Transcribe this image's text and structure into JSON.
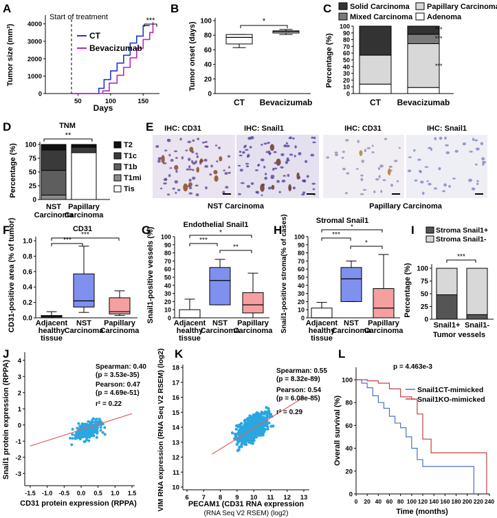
{
  "panels": {
    "A": {
      "letter": "A",
      "title": "Start of treatment",
      "xlabel": "Days",
      "ylabel": "Tumor size (mm³)",
      "yticks": [
        "0",
        "1000",
        "2000",
        "3000",
        "4000"
      ],
      "xticks": [
        "50",
        "100",
        "150"
      ],
      "sig": "***",
      "legend": [
        "CT",
        "Bevacizumab"
      ]
    },
    "B": {
      "letter": "B",
      "ylabel": "Tumor onset (days)",
      "yticks": [
        "0",
        "20",
        "40",
        "60",
        "80",
        "100"
      ],
      "cats": [
        "CT",
        "Bevacizumab"
      ],
      "sig": "*"
    },
    "C": {
      "letter": "C",
      "ylabel": "Percentage (%)",
      "yticks": [
        "0",
        "10",
        "20",
        "30",
        "40",
        "50",
        "60",
        "70",
        "80",
        "90",
        "100"
      ],
      "cats": [
        "CT",
        "Bevacizumab"
      ],
      "legend": [
        "Solid Carcinoma",
        "Papillary Carcinoma",
        "Mixed Carcinoma",
        "Adenoma"
      ],
      "sig": [
        "***",
        "***",
        "***"
      ]
    },
    "D": {
      "letter": "D",
      "title": "TNM",
      "ylabel": "Percentage (%)",
      "yticks": [
        "0",
        "25",
        "50",
        "75",
        "100"
      ],
      "cats": [
        "NST Carcinoma",
        "Papillary Carcinoma"
      ],
      "legend": [
        "T2",
        "T1c",
        "T1b",
        "T1mi",
        "Tis"
      ],
      "sig": "**"
    },
    "E": {
      "letter": "E",
      "labels": [
        "IHC: CD31",
        "IHC: Snail1",
        "IHC: CD31",
        "IHC: Snail1"
      ],
      "captions": [
        "NST Carcinoma",
        "Papillary Carcinoma"
      ]
    },
    "F": {
      "letter": "F",
      "title": "CD31",
      "ylabel": "CD31-positive area (% of tumor)",
      "yticks": [
        "0.0",
        "0.2",
        "0.4",
        "0.6",
        "0.8",
        "1.0"
      ],
      "cats": [
        "Adjacent healthy tissue",
        "NST Carcinoma",
        "Papillary Carcinoma"
      ],
      "sig": [
        "***",
        "***"
      ]
    },
    "G": {
      "letter": "G",
      "title": "Endothelial Snail1",
      "ylabel": "Snail1-positive vessels (%)",
      "yticks": [
        "0",
        "10",
        "20",
        "30",
        "40",
        "50",
        "60",
        "70",
        "80",
        "90",
        "100"
      ],
      "cats": [
        "Adjacent healthy tissue",
        "NST Carcinoma",
        "Papillary Carcinoma"
      ],
      "sig": [
        "*",
        "***",
        "**"
      ]
    },
    "H": {
      "letter": "H",
      "title": "Stromal Snail1",
      "ylabel": "Snail1-positive stroma(% of cases)",
      "yticks": [
        "0",
        "10",
        "20",
        "30",
        "40",
        "50",
        "60",
        "70",
        "80",
        "90",
        "100"
      ],
      "cats": [
        "Adjacent healthy tissue",
        "NST Carcinoma",
        "Papillary Carcinoma"
      ],
      "sig": [
        "*",
        "***",
        "*"
      ]
    },
    "I": {
      "letter": "I",
      "ylabel": "Percentage (%)",
      "yticks": [
        "0",
        "25",
        "50",
        "75",
        "100"
      ],
      "cats": [
        "Snail1+",
        "Snail1-"
      ],
      "xlabel": "Tumor vessels",
      "legend": [
        "Stroma Snail1+",
        "Stroma Snail1-"
      ],
      "sig": "***"
    },
    "J": {
      "letter": "J",
      "xlabel": "CD31 protein expression (RPPA)",
      "ylabel": "Snail1 protein expression (RPPA)",
      "xticks": [
        "-1.5",
        "-1.0",
        "-0.5",
        "0.0",
        "0.5",
        "1.0",
        "1.5"
      ],
      "yticks": [
        "-3",
        "-2",
        "-1",
        "0",
        "1",
        "2",
        "3",
        "4"
      ],
      "stats": [
        "Spearman: 0.40",
        "(p = 3.53e-35)",
        "Pearson: 0.47",
        "(p = 4.69e-51)",
        "r² = 0.22"
      ]
    },
    "K": {
      "letter": "K",
      "xlabel": "PECAM1 (CD31 RNA expression",
      "xlabel2": "(RNA Seq V2 RSEM) (log2)",
      "ylabel": "VIM RNA expression (RNA Seq V2 RSEM) (log2)",
      "xticks": [
        "6",
        "7",
        "8",
        "9",
        "10",
        "11",
        "12",
        "13"
      ],
      "yticks": [
        "10",
        "11",
        "12",
        "13",
        "14",
        "15",
        "16",
        "17",
        "18"
      ],
      "stats": [
        "Spearman: 0.55",
        "(p = 8.32e-89)",
        "Pearson: 0.54",
        "(p = 6.08e-85)",
        "r² = 0.29"
      ]
    },
    "L": {
      "letter": "L",
      "pvalue": "p = 4.463e-3",
      "xlabel": "Time (months)",
      "ylabel": "Overall survival (%)",
      "xticks": [
        "0",
        "20",
        "40",
        "60",
        "80",
        "100",
        "120",
        "140",
        "160",
        "180",
        "200",
        "220",
        "240"
      ],
      "yticks": [
        "0",
        "20",
        "40",
        "60",
        "80",
        "100"
      ],
      "legend": [
        "Snail1CT-mimicked",
        "Snail1KO-mimicked"
      ]
    }
  },
  "colors": {
    "ct": "#2233cc",
    "bev": "#c020c0",
    "blue_box": "#8090ee",
    "red_box": "#f4a0a0",
    "scatter": "#2aa7e0",
    "fit": "#e06060",
    "surv_blue": "#4a70c8",
    "surv_red": "#c04040"
  },
  "chart_data": [
    {
      "panel": "A",
      "type": "line",
      "series": [
        {
          "name": "CT",
          "x": [
            40,
            78,
            82,
            90,
            100,
            110,
            120,
            130,
            140,
            150,
            160
          ],
          "y": [
            0,
            0,
            300,
            800,
            1300,
            1750,
            2200,
            2900,
            3300,
            3900,
            3900
          ]
        },
        {
          "name": "Bevacizumab",
          "x": [
            40,
            84,
            88,
            98,
            110,
            120,
            130,
            140,
            150,
            160,
            165
          ],
          "y": [
            0,
            0,
            150,
            600,
            1050,
            1500,
            2050,
            2600,
            3100,
            3500,
            4100
          ]
        }
      ],
      "xlim": [
        0,
        175
      ],
      "ylim": [
        0,
        4500
      ]
    },
    {
      "panel": "B",
      "type": "box",
      "categories": [
        "CT",
        "Bevacizumab"
      ],
      "boxes": [
        {
          "min": 63,
          "q1": 68,
          "median": 77,
          "q3": 81,
          "max": 81
        },
        {
          "min": 81,
          "q1": 83,
          "median": 85,
          "q3": 86,
          "max": 88
        }
      ],
      "ylim": [
        0,
        100
      ]
    },
    {
      "panel": "C",
      "type": "bar",
      "stacked": true,
      "categories": [
        "CT",
        "Bevacizumab"
      ],
      "series": [
        {
          "name": "Adenoma",
          "values": [
            14,
            9
          ]
        },
        {
          "name": "Papillary Carcinoma",
          "values": [
            43,
            65
          ]
        },
        {
          "name": "Mixed Carcinoma",
          "values": [
            0,
            14
          ]
        },
        {
          "name": "Solid Carcinoma",
          "values": [
            43,
            12
          ]
        }
      ],
      "ylim": [
        0,
        100
      ]
    },
    {
      "panel": "D",
      "type": "bar",
      "stacked": true,
      "categories": [
        "NST Carcinoma",
        "Papillary Carcinoma"
      ],
      "series": [
        {
          "name": "Tis",
          "values": [
            0,
            85
          ]
        },
        {
          "name": "T1mi",
          "values": [
            8,
            0
          ]
        },
        {
          "name": "T1b",
          "values": [
            45,
            0
          ]
        },
        {
          "name": "T1c",
          "values": [
            37,
            10
          ]
        },
        {
          "name": "T2",
          "values": [
            10,
            5
          ]
        }
      ],
      "ylim": [
        0,
        100
      ]
    },
    {
      "panel": "F",
      "type": "box",
      "categories": [
        "Adjacent healthy tissue",
        "NST Carcinoma",
        "Papillary Carcinoma"
      ],
      "boxes": [
        {
          "min": 0.0,
          "q1": 0.01,
          "median": 0.02,
          "q3": 0.03,
          "max": 0.08
        },
        {
          "min": 0.07,
          "q1": 0.14,
          "median": 0.22,
          "q3": 0.57,
          "max": 0.93
        },
        {
          "min": 0.03,
          "q1": 0.05,
          "median": 0.08,
          "q3": 0.26,
          "max": 0.35
        }
      ],
      "ylim": [
        0,
        1.0
      ]
    },
    {
      "panel": "G",
      "type": "box",
      "categories": [
        "Adjacent healthy tissue",
        "NST Carcinoma",
        "Papillary Carcinoma"
      ],
      "boxes": [
        {
          "min": 0,
          "q1": 0,
          "median": 0,
          "q3": 10,
          "max": 23
        },
        {
          "min": 16,
          "q1": 16,
          "median": 46,
          "q3": 62,
          "max": 72
        },
        {
          "min": 0,
          "q1": 6,
          "median": 16,
          "q3": 31,
          "max": 55
        }
      ],
      "ylim": [
        0,
        100
      ]
    },
    {
      "panel": "H",
      "type": "box",
      "categories": [
        "Adjacent healthy tissue",
        "NST Carcinoma",
        "Papillary Carcinoma"
      ],
      "boxes": [
        {
          "min": 0,
          "q1": 0,
          "median": 0,
          "q3": 12,
          "max": 19
        },
        {
          "min": 20,
          "q1": 20,
          "median": 48,
          "q3": 62,
          "max": 70
        },
        {
          "min": 0,
          "q1": 0,
          "median": 12,
          "q3": 36,
          "max": 78
        }
      ],
      "ylim": [
        0,
        100
      ]
    },
    {
      "panel": "I",
      "type": "bar",
      "stacked": true,
      "categories": [
        "Snail1+",
        "Snail1-"
      ],
      "series": [
        {
          "name": "Stroma Snail1+",
          "values": [
            48,
            9
          ]
        },
        {
          "name": "Stroma Snail1-",
          "values": [
            52,
            91
          ]
        }
      ],
      "ylim": [
        0,
        100
      ]
    },
    {
      "panel": "J",
      "type": "scatter",
      "fit": {
        "x": [
          -1.5,
          1.5
        ],
        "y": [
          -1.3,
          0.7
        ]
      },
      "xlim": [
        -1.5,
        1.5
      ],
      "ylim": [
        -3.5,
        4.5
      ]
    },
    {
      "panel": "K",
      "type": "scatter",
      "fit": {
        "x": [
          7.5,
          13
        ],
        "y": [
          12.2,
          16.0
        ]
      },
      "xlim": [
        6,
        13
      ],
      "ylim": [
        10,
        18
      ]
    },
    {
      "panel": "L",
      "type": "line",
      "series": [
        {
          "name": "Snail1CT-mimicked",
          "x": [
            0,
            10,
            20,
            30,
            40,
            50,
            60,
            70,
            80,
            90,
            100,
            110,
            120,
            150,
            212
          ],
          "y": [
            100,
            97,
            93,
            86,
            80,
            75,
            68,
            62,
            58,
            50,
            40,
            30,
            24,
            24,
            0
          ]
        },
        {
          "name": "Snail1KO-mimicked",
          "x": [
            0,
            20,
            40,
            60,
            80,
            100,
            110,
            120,
            135,
            235
          ],
          "y": [
            100,
            99,
            97,
            92,
            85,
            83,
            70,
            48,
            36,
            0
          ]
        }
      ],
      "xlim": [
        0,
        240
      ],
      "ylim": [
        0,
        100
      ]
    }
  ]
}
